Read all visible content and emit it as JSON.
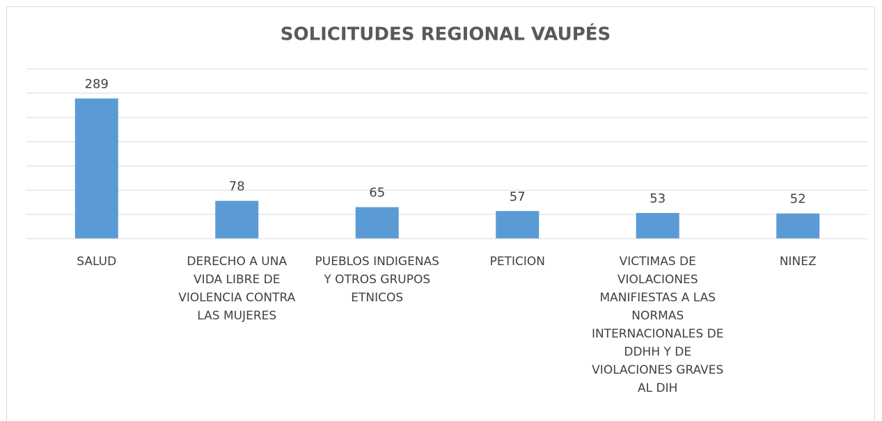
{
  "chart_data": {
    "type": "bar",
    "title": "SOLICITUDES REGIONAL VAUPÉS",
    "categories": [
      "SALUD",
      "DERECHO A UNA VIDA LIBRE DE VIOLENCIA CONTRA LAS MUJERES",
      "PUEBLOS INDIGENAS Y OTROS GRUPOS ETNICOS",
      "PETICION",
      "VICTIMAS DE VIOLACIONES MANIFIESTAS A LAS NORMAS INTERNACIONALES DE DDHH Y DE VIOLACIONES GRAVES AL DIH",
      "NINEZ"
    ],
    "values": [
      289,
      78,
      65,
      57,
      53,
      52
    ],
    "color": "#5b9bd5",
    "ylim": [
      0,
      350
    ],
    "yticks": [
      0,
      50,
      100,
      150,
      200,
      250,
      300,
      350
    ],
    "grid": true
  }
}
